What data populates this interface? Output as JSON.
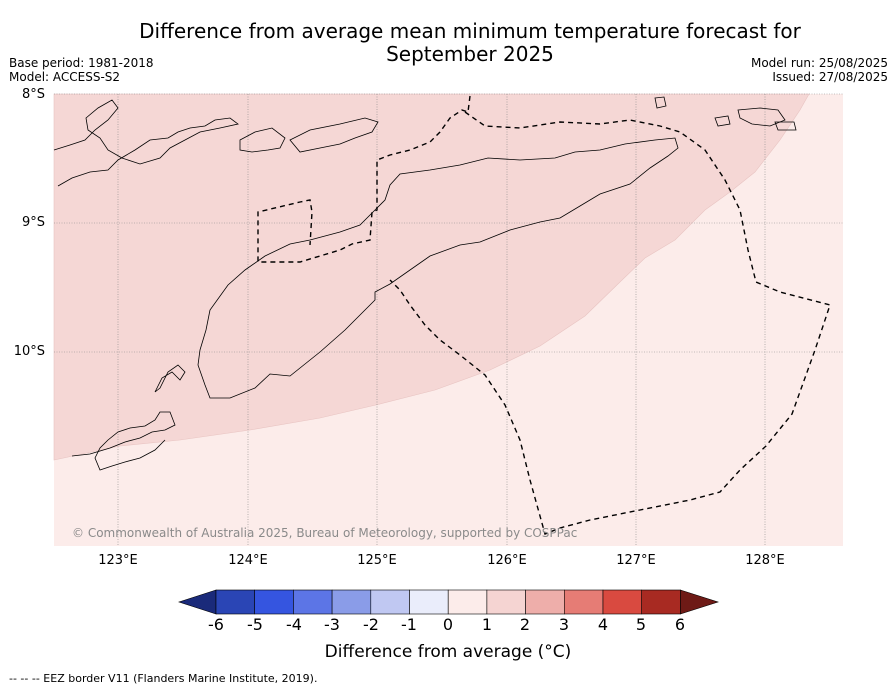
{
  "title_line1": "Difference from average mean minimum temperature forecast for",
  "title_line2": "September 2025",
  "base_period": "Base period: 1981-2018",
  "model": "Model: ACCESS-S2",
  "model_run": "Model run: 25/08/2025",
  "issued": "Issued: 27/08/2025",
  "lat_labels": [
    "8°S",
    "9°S",
    "10°S"
  ],
  "lon_labels": [
    "123°E",
    "124°E",
    "125°E",
    "126°E",
    "127°E",
    "128°E"
  ],
  "copyright": "© Commonwealth of Australia 2025, Bureau of Meteorology, supported by COSPPac",
  "colorbar": {
    "ticks": [
      "-6",
      "-5",
      "-4",
      "-3",
      "-2",
      "-1",
      "0",
      "1",
      "2",
      "3",
      "4",
      "5",
      "6"
    ],
    "colors": [
      "#1a2a7a",
      "#2a45b5",
      "#3555e0",
      "#5c75e6",
      "#8a9ce8",
      "#c0c8f2",
      "#eaedfb",
      "#fcecea",
      "#f5d4d2",
      "#eeaeaa",
      "#e67c75",
      "#d94a40",
      "#a82a22",
      "#6e1a16"
    ],
    "label": "Difference from average (°C)"
  },
  "legend_footnote": "--  --  -- EEZ border V11 (Flanders Marine Institute, 2019).",
  "fill_colors": {
    "zone_0_1": "#fcecea",
    "zone_1_2": "#f5d7d5"
  }
}
